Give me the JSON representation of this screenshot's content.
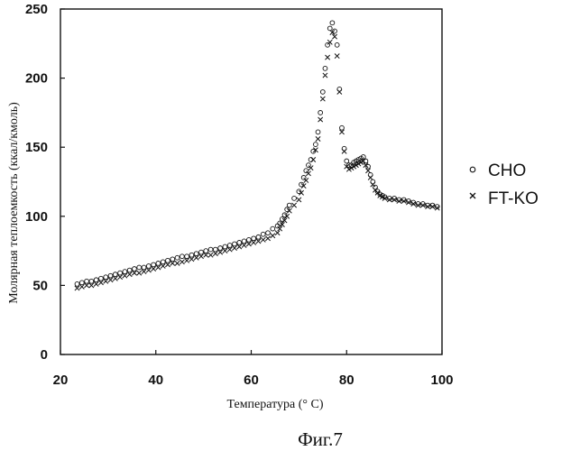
{
  "chart_data": {
    "type": "scatter",
    "xlabel": "Температура (° C)",
    "ylabel": "Молярная теплоемкость (ккал/кмоль)",
    "xlim": [
      20,
      100
    ],
    "ylim": [
      0,
      250
    ],
    "xticks": [
      20,
      40,
      60,
      80,
      100
    ],
    "yticks": [
      0,
      50,
      100,
      150,
      200,
      250
    ],
    "grid": false,
    "legend_position": "right",
    "caption": "Фиг.7",
    "series": [
      {
        "name": "CHO",
        "marker": "circle",
        "x": [
          23.5,
          24.5,
          25.5,
          26.5,
          27.5,
          28.5,
          29.5,
          30.5,
          31.5,
          32.5,
          33.5,
          34.5,
          35.5,
          36.5,
          37.5,
          38.5,
          39.5,
          40.5,
          41.5,
          42.5,
          43.5,
          44.5,
          45.5,
          46.5,
          47.5,
          48.5,
          49.5,
          50.5,
          51.5,
          52.5,
          53.5,
          54.5,
          55.5,
          56.5,
          57.5,
          58.5,
          59.5,
          60.5,
          61.5,
          62.5,
          63.5,
          64.5,
          65.5,
          66.0,
          66.5,
          67.0,
          67.5,
          68.0,
          69.0,
          70.0,
          70.5,
          71.0,
          71.5,
          72.0,
          72.5,
          73.0,
          73.5,
          74.0,
          74.5,
          75.0,
          75.5,
          76.0,
          76.5,
          77.0,
          77.5,
          78.0,
          78.5,
          79.0,
          79.5,
          80.0,
          80.5,
          81.0,
          81.5,
          82.0,
          82.5,
          83.0,
          83.5,
          84.0,
          84.5,
          85.0,
          85.5,
          86.0,
          86.5,
          87.0,
          87.5,
          88.0,
          89.0,
          90.0,
          91.0,
          92.0,
          93.0,
          94.0,
          95.0,
          96.0,
          97.0,
          98.0,
          99.0
        ],
        "y": [
          51,
          52,
          53,
          53,
          54,
          55,
          56,
          57,
          58,
          59,
          60,
          61,
          62,
          63,
          63,
          64,
          65,
          66,
          67,
          68,
          69,
          70,
          71,
          71,
          72,
          73,
          74,
          75,
          76,
          76,
          77,
          78,
          79,
          80,
          81,
          82,
          83,
          84,
          85,
          87,
          88,
          91,
          93,
          95,
          98,
          101,
          105,
          108,
          113,
          118,
          123,
          128,
          133,
          137,
          141,
          147,
          152,
          161,
          175,
          190,
          207,
          224,
          236,
          240,
          234,
          224,
          192,
          164,
          149,
          140,
          137,
          137,
          139,
          140,
          141,
          142,
          143,
          140,
          136,
          130,
          125,
          121,
          118,
          116,
          115,
          114,
          113,
          113,
          112,
          112,
          111,
          110,
          109,
          109,
          108,
          108,
          107
        ]
      },
      {
        "name": "FT-KO",
        "marker": "x",
        "x": [
          23.5,
          24.5,
          25.5,
          26.5,
          27.5,
          28.5,
          29.5,
          30.5,
          31.5,
          32.5,
          33.5,
          34.5,
          35.5,
          36.5,
          37.5,
          38.5,
          39.5,
          40.5,
          41.5,
          42.5,
          43.5,
          44.5,
          45.5,
          46.5,
          47.5,
          48.5,
          49.5,
          50.5,
          51.5,
          52.5,
          53.5,
          54.5,
          55.5,
          56.5,
          57.5,
          58.5,
          59.5,
          60.5,
          61.5,
          62.5,
          63.5,
          64.5,
          65.5,
          66.0,
          66.5,
          67.0,
          67.5,
          68.0,
          69.0,
          70.0,
          70.5,
          71.0,
          71.5,
          72.0,
          72.5,
          73.0,
          73.5,
          74.0,
          74.5,
          75.0,
          75.5,
          76.0,
          76.5,
          77.0,
          77.5,
          78.0,
          78.5,
          79.0,
          79.5,
          80.0,
          80.5,
          81.0,
          81.5,
          82.0,
          82.5,
          83.0,
          83.5,
          84.0,
          84.5,
          85.0,
          85.5,
          86.0,
          86.5,
          87.0,
          87.5,
          88.0,
          89.0,
          90.0,
          91.0,
          92.0,
          93.0,
          94.0,
          95.0,
          96.0,
          97.0,
          98.0,
          99.0
        ],
        "y": [
          48,
          49,
          50,
          50,
          51,
          52,
          53,
          54,
          55,
          56,
          57,
          58,
          59,
          59,
          60,
          61,
          62,
          63,
          64,
          65,
          66,
          66,
          67,
          68,
          69,
          70,
          71,
          72,
          72,
          73,
          74,
          75,
          76,
          77,
          78,
          79,
          80,
          81,
          82,
          83,
          84,
          86,
          88,
          91,
          94,
          97,
          100,
          104,
          108,
          112,
          117,
          122,
          126,
          131,
          135,
          141,
          148,
          156,
          170,
          185,
          202,
          215,
          226,
          233,
          230,
          216,
          190,
          161,
          147,
          136,
          134,
          135,
          136,
          137,
          138,
          139,
          140,
          137,
          133,
          128,
          123,
          119,
          117,
          115,
          114,
          113,
          112,
          112,
          111,
          111,
          110,
          109,
          108,
          108,
          107,
          107,
          106
        ]
      }
    ]
  }
}
